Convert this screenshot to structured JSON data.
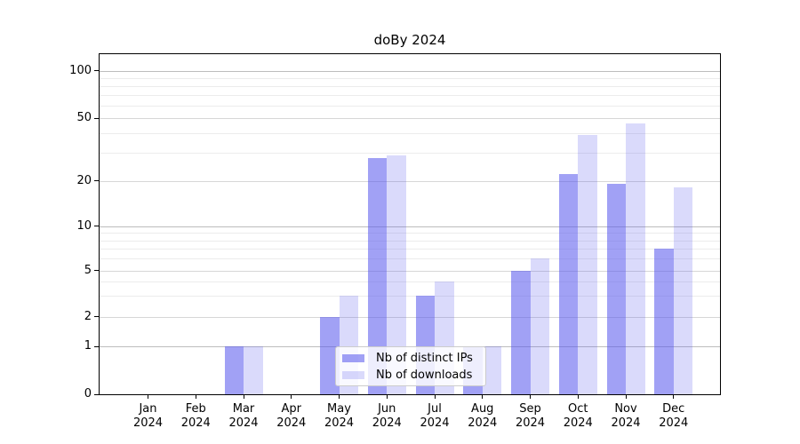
{
  "title": "doBy 2024",
  "chart_data": {
    "type": "bar",
    "title": "doBy 2024",
    "categories": [
      "Jan",
      "Feb",
      "Mar",
      "Apr",
      "May",
      "Jun",
      "Jul",
      "Aug",
      "Sep",
      "Oct",
      "Nov",
      "Dec"
    ],
    "year_label": "2024",
    "series": [
      {
        "name": "Nb of distinct IPs",
        "fill": "rgba(88,88,238,0.56)",
        "solid_color": "#a2a2f6",
        "values": [
          0,
          0,
          1,
          0,
          2,
          28,
          3,
          1,
          5,
          22,
          19,
          7
        ]
      },
      {
        "name": "Nb of downloads",
        "fill": "rgba(88,88,238,0.22)",
        "solid_color": "#dadafb",
        "values": [
          0,
          0,
          1,
          0,
          3,
          29,
          4,
          1,
          6,
          39,
          46,
          18
        ]
      }
    ],
    "y_axis": {
      "scale": "symlog",
      "ticks": [
        0,
        1,
        2,
        5,
        10,
        20,
        50,
        100
      ],
      "decade_ticks": [
        1,
        10,
        100
      ],
      "minor_gridlines": [
        3,
        4,
        6,
        7,
        8,
        9,
        30,
        40,
        60,
        70,
        80,
        90
      ],
      "range": [
        0,
        127
      ]
    },
    "x_axis": {
      "tick_label_lines": 2
    },
    "legend_position": "lower center",
    "grid": true
  },
  "colors": {
    "bar_distinct_ips": "#a2a2f6",
    "bar_downloads": "#dadafb",
    "grid_decade": "#bdbdbd",
    "grid_labeled": "#d7d7d7",
    "grid_minor": "#ececec",
    "spine": "#000000",
    "background": "#ffffff",
    "text": "#000000"
  }
}
